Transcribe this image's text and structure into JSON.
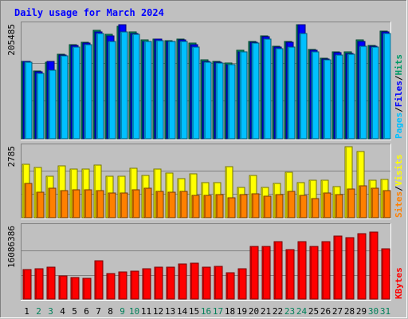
{
  "chart_data": {
    "type": "bar",
    "title": "Daily usage for March 2024",
    "categories": [
      "1",
      "2",
      "3",
      "4",
      "5",
      "6",
      "7",
      "8",
      "9",
      "10",
      "11",
      "12",
      "13",
      "14",
      "15",
      "16",
      "17",
      "18",
      "19",
      "20",
      "21",
      "22",
      "23",
      "24",
      "25",
      "26",
      "27",
      "28",
      "29",
      "30",
      "31"
    ],
    "weekend_days": [
      "2",
      "3",
      "9",
      "10",
      "16",
      "17",
      "23",
      "24",
      "30",
      "31"
    ],
    "panels": [
      {
        "name": "requests",
        "y_max_label": "205485",
        "ylim": [
          0,
          205485
        ],
        "right_labels": [
          "Pages",
          "Files",
          "Hits"
        ],
        "series": [
          {
            "name": "Hits",
            "color": "#009966",
            "values": [
              140000,
              122000,
              138000,
              153000,
              169000,
              174000,
              196000,
              188000,
              202000,
              192000,
              178000,
              180000,
              177000,
              180000,
              172000,
              142000,
              140000,
              137000,
              159000,
              175000,
              185000,
              166000,
              175000,
              205485,
              161000,
              145000,
              157000,
              156000,
              178000,
              168000,
              194000
            ]
          },
          {
            "name": "Files",
            "color": "#0000ff",
            "values": [
              140000,
              121000,
              140000,
              151000,
              168000,
              173000,
              192000,
              186000,
              205000,
              190000,
              176000,
              179000,
              176000,
              178000,
              170000,
              140000,
              138000,
              134000,
              156000,
              174000,
              184000,
              165000,
              174000,
              205000,
              159000,
              144000,
              155000,
              154000,
              176000,
              167000,
              192000
            ]
          },
          {
            "name": "Pages",
            "color": "#00c0ff",
            "values": [
              138000,
              118000,
              124000,
              150000,
              165000,
              169000,
              189000,
              175000,
              192000,
              188000,
              175000,
              177000,
              175000,
              176000,
              165000,
              138000,
              136000,
              133000,
              157000,
              172000,
              180000,
              163000,
              165000,
              190000,
              156000,
              142000,
              151000,
              153000,
              166000,
              165000,
              189000
            ]
          }
        ]
      },
      {
        "name": "visitors",
        "y_max_label": "2785",
        "ylim": [
          0,
          2785
        ],
        "right_labels": [
          "Sites",
          "Visits"
        ],
        "series": [
          {
            "name": "Visits",
            "color": "#ffff00",
            "values": [
              2090,
              1960,
              1620,
              2040,
              1900,
              1900,
              2060,
              1620,
              1630,
              1950,
              1650,
              1900,
              1750,
              1520,
              1720,
              1380,
              1370,
              2010,
              1200,
              1650,
              1190,
              1360,
              1770,
              1380,
              1470,
              1480,
              1220,
              2785,
              2590,
              1480,
              1510
            ]
          },
          {
            "name": "Sites",
            "color": "#ff8000",
            "values": [
              1360,
              1000,
              1170,
              1050,
              1100,
              1100,
              1050,
              960,
              970,
              1100,
              1160,
              1040,
              990,
              1040,
              870,
              880,
              920,
              780,
              900,
              940,
              830,
              920,
              1020,
              880,
              760,
              980,
              900,
              1140,
              1260,
              1150,
              1050
            ]
          }
        ]
      },
      {
        "name": "kbytes",
        "y_max_label": "16086386",
        "ylim": [
          0,
          16086386
        ],
        "right_labels": [
          "KBytes"
        ],
        "series": [
          {
            "name": "KBytes",
            "color": "#ff0000",
            "values": [
              6600000,
              6800000,
              7000000,
              5200000,
              4800000,
              4600000,
              8500000,
              5600000,
              6000000,
              6200000,
              6800000,
              7000000,
              7100000,
              7800000,
              8000000,
              7000000,
              7200000,
              5800000,
              6800000,
              11700000,
              11600000,
              12700000,
              11000000,
              12700000,
              11600000,
              12800000,
              14000000,
              13600000,
              14500000,
              14800000,
              11200000
            ]
          }
        ]
      }
    ]
  }
}
